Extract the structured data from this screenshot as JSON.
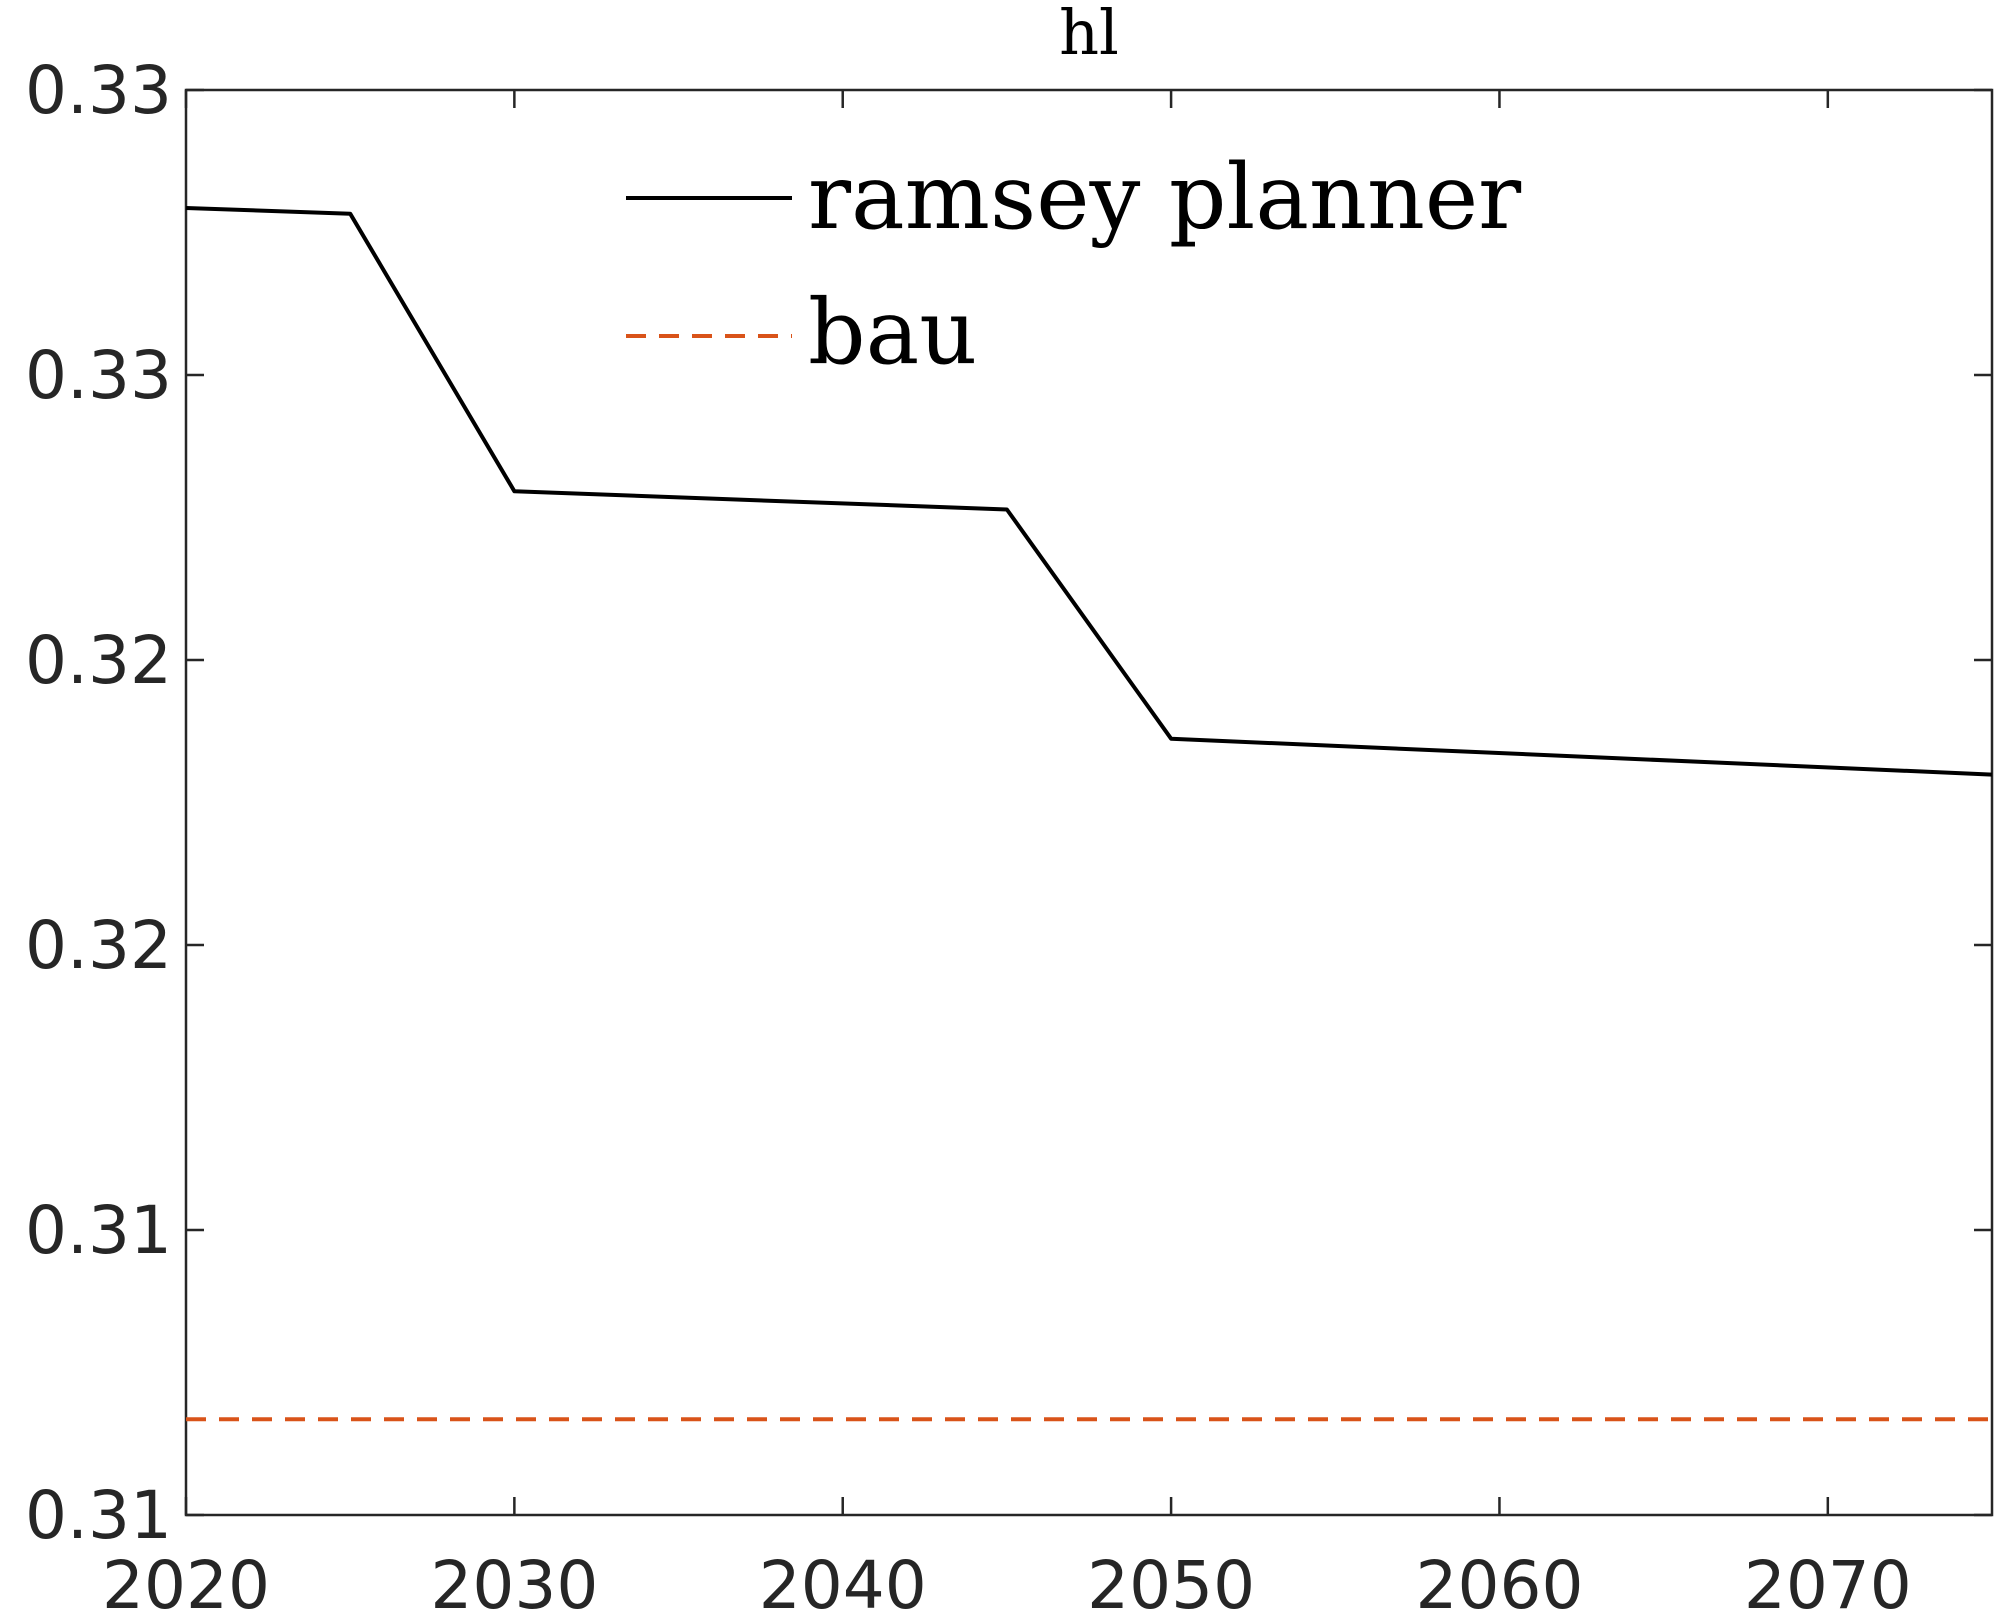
{
  "chart_data": {
    "type": "line",
    "title": "hl",
    "xlabel": "",
    "ylabel": "",
    "xlim": [
      2020,
      2075
    ],
    "ylim": [
      0.3075,
      0.3325
    ],
    "x_ticks": [
      2020,
      2030,
      2040,
      2050,
      2060,
      2070
    ],
    "x_tick_labels": [
      "2020",
      "2030",
      "2040",
      "2050",
      "2060",
      "2070"
    ],
    "y_ticks": [
      0.3075,
      0.3125,
      0.3175,
      0.3225,
      0.3275,
      0.3325
    ],
    "y_tick_labels": [
      "0.31",
      "0.31",
      "0.32",
      "0.32",
      "0.33",
      "0.33"
    ],
    "grid": false,
    "legend_position": "top-center",
    "series": [
      {
        "name": "ramsey planner",
        "color": "#000000",
        "style": "solid",
        "x": [
          2020,
          2025,
          2030,
          2045,
          2050,
          2075
        ],
        "y": [
          0.33043,
          0.33033,
          0.32546,
          0.32514,
          0.32112,
          0.32049
        ]
      },
      {
        "name": "bau",
        "color": "#D95319",
        "style": "dashed",
        "x": [
          2020,
          2075
        ],
        "y": [
          0.30918,
          0.30918
        ]
      }
    ]
  }
}
